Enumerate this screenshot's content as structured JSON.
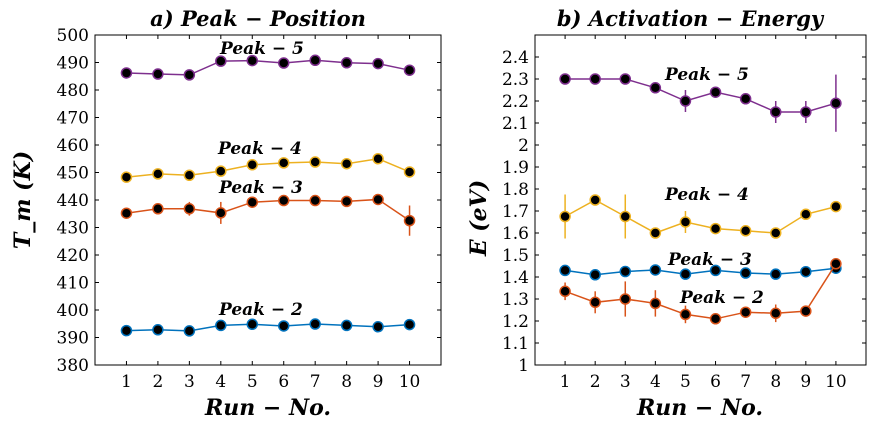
{
  "chart_data": [
    {
      "type": "line",
      "title": "a) Peak − Position",
      "xlabel": "Run − No.",
      "ylabel": "T_m (K)",
      "x": [
        1,
        2,
        3,
        4,
        5,
        6,
        7,
        8,
        9,
        10
      ],
      "xlim": [
        0,
        11
      ],
      "ylim": [
        380,
        500
      ],
      "yticks": [
        380,
        390,
        400,
        410,
        420,
        430,
        440,
        450,
        460,
        470,
        480,
        490,
        500
      ],
      "grid": false,
      "series": [
        {
          "name": "Peak − 5",
          "color": "#7E2F8E",
          "values": [
            486.2,
            485.8,
            485.5,
            490.5,
            490.7,
            489.8,
            490.8,
            489.9,
            489.6,
            487.2
          ],
          "errors": [
            0,
            0,
            0,
            0,
            0,
            0,
            0,
            0,
            0,
            0
          ]
        },
        {
          "name": "Peak − 4",
          "color": "#EDB120",
          "values": [
            448.3,
            449.5,
            449.0,
            450.5,
            452.8,
            453.5,
            453.8,
            453.2,
            455.0,
            450.2
          ],
          "errors": [
            0,
            0,
            0,
            0,
            0,
            0,
            0,
            2,
            0,
            0
          ]
        },
        {
          "name": "Peak − 3",
          "color": "#D95319",
          "values": [
            435.2,
            436.8,
            436.8,
            435.3,
            439.2,
            439.8,
            439.8,
            439.5,
            440.2,
            432.5
          ],
          "errors": [
            0,
            0,
            2.5,
            4,
            0,
            0,
            0,
            0,
            0,
            5.5
          ]
        },
        {
          "name": "Peak − 2",
          "color": "#0072BD",
          "values": [
            392.5,
            392.8,
            392.4,
            394.4,
            394.8,
            394.2,
            394.9,
            394.4,
            393.9,
            394.7
          ],
          "errors": [
            0,
            0,
            0,
            0,
            0,
            0,
            0,
            0,
            0,
            0
          ]
        }
      ]
    },
    {
      "type": "line",
      "title": "b) Activation − Energy",
      "xlabel": "Run − No.",
      "ylabel": "E (eV)",
      "x": [
        1,
        2,
        3,
        4,
        5,
        6,
        7,
        8,
        9,
        10
      ],
      "xlim": [
        0,
        11
      ],
      "ylim": [
        1,
        2.5
      ],
      "yticks": [
        1,
        1.1,
        1.2,
        1.3,
        1.4,
        1.5,
        1.6,
        1.7,
        1.8,
        1.9,
        2,
        2.1,
        2.2,
        2.3,
        2.4
      ],
      "grid": false,
      "series": [
        {
          "name": "Peak − 5",
          "color": "#7E2F8E",
          "values": [
            2.3,
            2.3,
            2.3,
            2.26,
            2.2,
            2.24,
            2.21,
            2.15,
            2.15,
            2.19
          ],
          "errors": [
            0,
            0,
            0,
            0,
            0.05,
            0,
            0,
            0.05,
            0.05,
            0.13
          ]
        },
        {
          "name": "Peak − 4",
          "color": "#EDB120",
          "values": [
            1.675,
            1.75,
            1.675,
            1.6,
            1.65,
            1.62,
            1.61,
            1.6,
            1.685,
            1.72
          ],
          "errors": [
            0.1,
            0,
            0.1,
            0,
            0.05,
            0,
            0,
            0,
            0,
            0
          ]
        },
        {
          "name": "Peak − 3",
          "color": "#0072BD",
          "values": [
            1.43,
            1.41,
            1.425,
            1.432,
            1.413,
            1.43,
            1.418,
            1.413,
            1.424,
            1.44
          ],
          "errors": [
            0,
            0,
            0,
            0,
            0,
            0,
            0,
            0,
            0,
            0
          ]
        },
        {
          "name": "Peak − 2",
          "color": "#D95319",
          "values": [
            1.335,
            1.285,
            1.3,
            1.28,
            1.23,
            1.21,
            1.24,
            1.235,
            1.245,
            1.46
          ],
          "errors": [
            0.04,
            0.05,
            0.08,
            0.06,
            0.04,
            0,
            0,
            0.04,
            0,
            0
          ]
        }
      ]
    }
  ]
}
